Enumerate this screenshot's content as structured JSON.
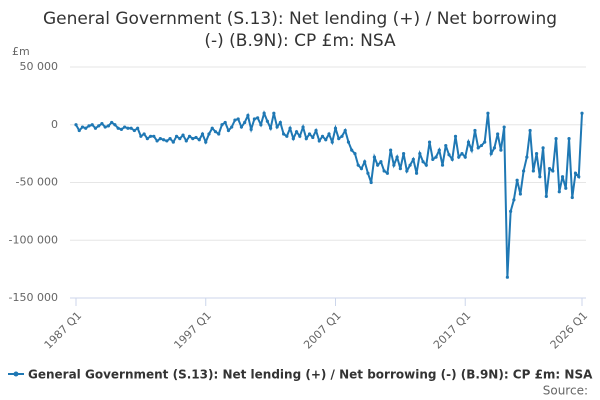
{
  "chart_data": {
    "type": "line",
    "title": "General Government (S.13): Net lending (+) / Net borrowing (-) (B.9N): CP £m: NSA",
    "y_label": "£m",
    "source": "Source:",
    "categories": [
      "1987 Q1",
      null,
      null,
      null,
      null,
      null,
      null,
      null,
      null,
      null,
      null,
      null,
      null,
      null,
      null,
      null,
      null,
      null,
      null,
      null,
      null,
      null,
      null,
      null,
      null,
      null,
      null,
      null,
      null,
      null,
      null,
      null,
      null,
      null,
      null,
      null,
      null,
      null,
      null,
      null,
      "1997 Q1",
      null,
      null,
      null,
      null,
      null,
      null,
      null,
      null,
      null,
      null,
      null,
      null,
      null,
      null,
      null,
      null,
      null,
      null,
      null,
      null,
      null,
      null,
      null,
      null,
      null,
      null,
      null,
      null,
      null,
      null,
      null,
      null,
      null,
      null,
      null,
      null,
      null,
      null,
      null,
      "2007 Q1",
      null,
      null,
      null,
      null,
      null,
      null,
      null,
      null,
      null,
      null,
      null,
      null,
      null,
      null,
      null,
      null,
      null,
      null,
      null,
      null,
      null,
      null,
      null,
      null,
      null,
      null,
      null,
      null,
      null,
      null,
      null,
      null,
      null,
      null,
      null,
      null,
      null,
      null,
      null,
      "2017 Q1",
      null,
      null,
      null,
      null,
      null,
      null,
      null,
      null,
      null,
      null,
      null,
      null,
      null,
      null,
      null,
      null,
      null,
      null,
      null,
      null,
      null,
      null,
      null,
      null,
      null,
      null,
      null,
      null,
      null,
      null,
      null,
      null,
      null,
      null,
      null,
      "2026 Q1"
    ],
    "series": [
      {
        "name": "General Government (S.13): Net lending (+) / Net borrowing (-) (B.9N): CP £m: NSA",
        "color": "#1f78b4",
        "values": [
          0,
          -5000,
          -2000,
          -3000,
          -1000,
          0,
          -3000,
          -1000,
          1000,
          -2000,
          -1000,
          2000,
          0,
          -3000,
          -4000,
          -2000,
          -3000,
          -3000,
          -5000,
          -3000,
          -10000,
          -8000,
          -12000,
          -10000,
          -10000,
          -14000,
          -12000,
          -13000,
          -14000,
          -12000,
          -15000,
          -10000,
          -12000,
          -9000,
          -14000,
          -10000,
          -12000,
          -11000,
          -13000,
          -8000,
          -15000,
          -8000,
          -3000,
          -6000,
          -8000,
          0,
          2000,
          -5000,
          -2000,
          4000,
          5000,
          -2000,
          2000,
          8000,
          -4000,
          5000,
          6000,
          0,
          10000,
          3000,
          -3000,
          10000,
          -2000,
          2000,
          -8000,
          -10000,
          -3000,
          -12000,
          -6000,
          -10000,
          -2000,
          -12000,
          -8000,
          -11000,
          -5000,
          -14000,
          -10000,
          -13000,
          -8000,
          -15000,
          -3000,
          -12000,
          -10000,
          -5000,
          -15000,
          -22000,
          -25000,
          -35000,
          -38000,
          -32000,
          -42000,
          -50000,
          -28000,
          -35000,
          -32000,
          -40000,
          -42000,
          -22000,
          -35000,
          -28000,
          -38000,
          -25000,
          -40000,
          -35000,
          -30000,
          -42000,
          -25000,
          -32000,
          -35000,
          -15000,
          -30000,
          -28000,
          -22000,
          -35000,
          -18000,
          -26000,
          -30000,
          -10000,
          -28000,
          -25000,
          -28000,
          -15000,
          -22000,
          -5000,
          -20000,
          -18000,
          -15000,
          10000,
          -25000,
          -20000,
          -8000,
          -22000,
          -2000,
          -132000,
          -75000,
          -65000,
          -48000,
          -60000,
          -40000,
          -28000,
          -5000,
          -40000,
          -25000,
          -45000,
          -20000,
          -62000,
          -38000,
          -40000,
          -12000,
          -58000,
          -45000,
          -55000,
          -12000,
          -63000,
          -42000,
          -45000,
          10000
        ]
      }
    ],
    "ylim": [
      -150000,
      50000
    ],
    "yticks": [
      {
        "value": -150000,
        "label": "-150 000"
      },
      {
        "value": -100000,
        "label": "-100 000"
      },
      {
        "value": -50000,
        "label": "-50 000"
      },
      0,
      {
        "value": 50000,
        "label": "50 000"
      }
    ],
    "grid": true
  }
}
